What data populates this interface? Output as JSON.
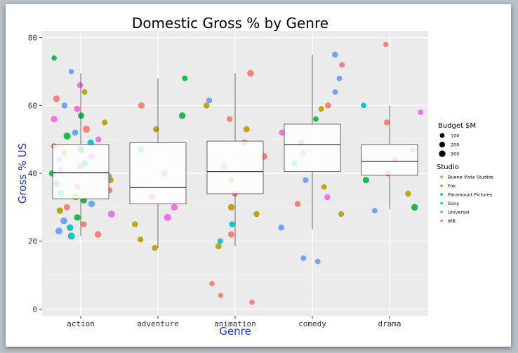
{
  "chart_data": {
    "type": "box+scatter",
    "title": "Domestic Gross % by Genre",
    "xlabel": "Genre",
    "ylabel": "Gross % US",
    "categories": [
      "action",
      "adventure",
      "animation",
      "comedy",
      "drama"
    ],
    "ylim": [
      -2,
      82
    ],
    "yticks": [
      0,
      20,
      40,
      60,
      80
    ],
    "grid": true,
    "boxes": [
      {
        "category": "action",
        "whisker_low": 21.5,
        "q1": 32.5,
        "median": 40.2,
        "q3": 48.5,
        "whisker_high": 69.5
      },
      {
        "category": "adventure",
        "whisker_low": 18.0,
        "q1": 31.0,
        "median": 35.8,
        "q3": 49.0,
        "whisker_high": 68.0
      },
      {
        "category": "animation",
        "whisker_low": 18.5,
        "q1": 34.0,
        "median": 40.5,
        "q3": 49.5,
        "whisker_high": 69.5
      },
      {
        "category": "comedy",
        "whisker_low": 23.5,
        "q1": 40.5,
        "median": 48.5,
        "q3": 54.5,
        "whisker_high": 75.0
      },
      {
        "category": "drama",
        "whisker_low": 29.5,
        "q1": 39.5,
        "median": 43.5,
        "q3": 48.5,
        "whisker_high": 60.0
      }
    ],
    "legend": {
      "placement": "right",
      "size_title": "Budget $M",
      "size_levels": [
        {
          "label": "100",
          "value": 100
        },
        {
          "label": "200",
          "value": 200
        },
        {
          "label": "300",
          "value": 300
        }
      ],
      "color_title": "Studio",
      "studios": [
        {
          "name": "Buena Vista Studios",
          "color": "#f8766d"
        },
        {
          "name": "Fox",
          "color": "#b79f00"
        },
        {
          "name": "Paramount Pictures",
          "color": "#00ba38"
        },
        {
          "name": "Sony",
          "color": "#00bfc4"
        },
        {
          "name": "Universal",
          "color": "#619cff"
        },
        {
          "name": "WB",
          "color": "#f564e3"
        }
      ]
    },
    "points": [
      {
        "genre": "action",
        "y": 66,
        "studio": "WB",
        "budget": 150
      },
      {
        "genre": "action",
        "y": 64,
        "studio": "Fox",
        "budget": 120
      },
      {
        "genre": "action",
        "y": 62,
        "studio": "Buena Vista Studios",
        "budget": 200
      },
      {
        "genre": "action",
        "y": 60,
        "studio": "Universal",
        "budget": 150
      },
      {
        "genre": "action",
        "y": 59,
        "studio": "WB",
        "budget": 170
      },
      {
        "genre": "action",
        "y": 57,
        "studio": "Paramount Pictures",
        "budget": 180
      },
      {
        "genre": "action",
        "y": 56,
        "studio": "WB",
        "budget": 200
      },
      {
        "genre": "action",
        "y": 55,
        "studio": "Fox",
        "budget": 130
      },
      {
        "genre": "action",
        "y": 53,
        "studio": "Buena Vista Studios",
        "budget": 230
      },
      {
        "genre": "action",
        "y": 52,
        "studio": "Universal",
        "budget": 160
      },
      {
        "genre": "action",
        "y": 51,
        "studio": "Paramount Pictures",
        "budget": 250
      },
      {
        "genre": "action",
        "y": 50,
        "studio": "WB",
        "budget": 140
      },
      {
        "genre": "action",
        "y": 49,
        "studio": "Sony",
        "budget": 200
      },
      {
        "genre": "action",
        "y": 48,
        "studio": "Buena Vista Studios",
        "budget": 150
      },
      {
        "genre": "action",
        "y": 47,
        "studio": "Paramount Pictures",
        "budget": 220
      },
      {
        "genre": "action",
        "y": 46,
        "studio": "Fox",
        "budget": 160
      },
      {
        "genre": "action",
        "y": 45,
        "studio": "WB",
        "budget": 180
      },
      {
        "genre": "action",
        "y": 44,
        "studio": "Universal",
        "budget": 130
      },
      {
        "genre": "action",
        "y": 43,
        "studio": "Sony",
        "budget": 210
      },
      {
        "genre": "action",
        "y": 42,
        "studio": "Buena Vista Studios",
        "budget": 170
      },
      {
        "genre": "action",
        "y": 41,
        "studio": "WB",
        "budget": 150
      },
      {
        "genre": "action",
        "y": 40,
        "studio": "Paramount Pictures",
        "budget": 190
      },
      {
        "genre": "action",
        "y": 39,
        "studio": "Universal",
        "budget": 240
      },
      {
        "genre": "action",
        "y": 38,
        "studio": "Fox",
        "budget": 170
      },
      {
        "genre": "action",
        "y": 37,
        "studio": "Sony",
        "budget": 160
      },
      {
        "genre": "action",
        "y": 36,
        "studio": "WB",
        "budget": 200
      },
      {
        "genre": "action",
        "y": 35,
        "studio": "Buena Vista Studios",
        "budget": 140
      },
      {
        "genre": "action",
        "y": 34,
        "studio": "Sony",
        "budget": 250
      },
      {
        "genre": "action",
        "y": 33,
        "studio": "Fox",
        "budget": 180
      },
      {
        "genre": "action",
        "y": 32,
        "studio": "Paramount Pictures",
        "budget": 150
      },
      {
        "genre": "action",
        "y": 31,
        "studio": "Universal",
        "budget": 200
      },
      {
        "genre": "action",
        "y": 30,
        "studio": "Buena Vista Studios",
        "budget": 170
      },
      {
        "genre": "action",
        "y": 29,
        "studio": "Fox",
        "budget": 200
      },
      {
        "genre": "action",
        "y": 28,
        "studio": "WB",
        "budget": 230
      },
      {
        "genre": "action",
        "y": 27,
        "studio": "Paramount Pictures",
        "budget": 190
      },
      {
        "genre": "action",
        "y": 26,
        "studio": "Universal",
        "budget": 220
      },
      {
        "genre": "action",
        "y": 25,
        "studio": "Buena Vista Studios",
        "budget": 150
      },
      {
        "genre": "action",
        "y": 24,
        "studio": "Sony",
        "budget": 200
      },
      {
        "genre": "action",
        "y": 23,
        "studio": "Universal",
        "budget": 230
      },
      {
        "genre": "action",
        "y": 22,
        "studio": "Buena Vista Studios",
        "budget": 200
      },
      {
        "genre": "action",
        "y": 21.5,
        "studio": "Sony",
        "budget": 240
      },
      {
        "genre": "action",
        "y": 70,
        "studio": "Universal",
        "budget": 100
      },
      {
        "genre": "action",
        "y": 74,
        "studio": "Paramount Pictures",
        "budget": 100
      },
      {
        "genre": "adventure",
        "y": 68,
        "studio": "Paramount Pictures",
        "budget": 120
      },
      {
        "genre": "adventure",
        "y": 60,
        "studio": "Buena Vista Studios",
        "budget": 180
      },
      {
        "genre": "adventure",
        "y": 57,
        "studio": "Paramount Pictures",
        "budget": 200
      },
      {
        "genre": "adventure",
        "y": 53,
        "studio": "Fox",
        "budget": 150
      },
      {
        "genre": "adventure",
        "y": 47,
        "studio": "Sony",
        "budget": 150
      },
      {
        "genre": "adventure",
        "y": 40,
        "studio": "Universal",
        "budget": 230
      },
      {
        "genre": "adventure",
        "y": 33,
        "studio": "Buena Vista Studios",
        "budget": 200
      },
      {
        "genre": "adventure",
        "y": 30,
        "studio": "WB",
        "budget": 200
      },
      {
        "genre": "adventure",
        "y": 27,
        "studio": "WB",
        "budget": 250
      },
      {
        "genre": "adventure",
        "y": 25,
        "studio": "Fox",
        "budget": 150
      },
      {
        "genre": "adventure",
        "y": 20.5,
        "studio": "Fox",
        "budget": 140
      },
      {
        "genre": "adventure",
        "y": 18,
        "studio": "Fox",
        "budget": 150
      },
      {
        "genre": "animation",
        "y": 61.5,
        "studio": "Universal",
        "budget": 130
      },
      {
        "genre": "animation",
        "y": 60,
        "studio": "Fox",
        "budget": 150
      },
      {
        "genre": "animation",
        "y": 56,
        "studio": "Buena Vista Studios",
        "budget": 140
      },
      {
        "genre": "animation",
        "y": 53,
        "studio": "Fox",
        "budget": 170
      },
      {
        "genre": "animation",
        "y": 49,
        "studio": "Buena Vista Studios",
        "budget": 200
      },
      {
        "genre": "animation",
        "y": 45,
        "studio": "Buena Vista Studios",
        "budget": 220
      },
      {
        "genre": "animation",
        "y": 42,
        "studio": "Buena Vista Studios",
        "budget": 180
      },
      {
        "genre": "animation",
        "y": 38,
        "studio": "Fox",
        "budget": 150
      },
      {
        "genre": "animation",
        "y": 34,
        "studio": "Buena Vista Studios",
        "budget": 160
      },
      {
        "genre": "animation",
        "y": 30,
        "studio": "Fox",
        "budget": 200
      },
      {
        "genre": "animation",
        "y": 28,
        "studio": "Fox",
        "budget": 150
      },
      {
        "genre": "animation",
        "y": 25,
        "studio": "Sony",
        "budget": 140
      },
      {
        "genre": "animation",
        "y": 22,
        "studio": "Buena Vista Studios",
        "budget": 180
      },
      {
        "genre": "animation",
        "y": 20,
        "studio": "Sony",
        "budget": 120
      },
      {
        "genre": "animation",
        "y": 18.5,
        "studio": "Fox",
        "budget": 150
      },
      {
        "genre": "animation",
        "y": 69.5,
        "studio": "Buena Vista Studios",
        "budget": 200
      },
      {
        "genre": "animation",
        "y": 7.5,
        "studio": "Buena Vista Studios",
        "budget": 90
      },
      {
        "genre": "animation",
        "y": 4,
        "studio": "Buena Vista Studios",
        "budget": 90
      },
      {
        "genre": "animation",
        "y": 2,
        "studio": "Buena Vista Studios",
        "budget": 90
      },
      {
        "genre": "comedy",
        "y": 75,
        "studio": "Universal",
        "budget": 150
      },
      {
        "genre": "comedy",
        "y": 72,
        "studio": "Buena Vista Studios",
        "budget": 110
      },
      {
        "genre": "comedy",
        "y": 68,
        "studio": "Universal",
        "budget": 110
      },
      {
        "genre": "comedy",
        "y": 64,
        "studio": "Universal",
        "budget": 110
      },
      {
        "genre": "comedy",
        "y": 60,
        "studio": "Buena Vista Studios",
        "budget": 150
      },
      {
        "genre": "comedy",
        "y": 59,
        "studio": "Fox",
        "budget": 120
      },
      {
        "genre": "comedy",
        "y": 56,
        "studio": "Paramount Pictures",
        "budget": 110
      },
      {
        "genre": "comedy",
        "y": 52,
        "studio": "WB",
        "budget": 170
      },
      {
        "genre": "comedy",
        "y": 49,
        "studio": "Universal",
        "budget": 140
      },
      {
        "genre": "comedy",
        "y": 46,
        "studio": "WB",
        "budget": 120
      },
      {
        "genre": "comedy",
        "y": 43,
        "studio": "Sony",
        "budget": 150
      },
      {
        "genre": "comedy",
        "y": 38,
        "studio": "Universal",
        "budget": 140
      },
      {
        "genre": "comedy",
        "y": 36,
        "studio": "Fox",
        "budget": 120
      },
      {
        "genre": "comedy",
        "y": 33,
        "studio": "WB",
        "budget": 150
      },
      {
        "genre": "comedy",
        "y": 31,
        "studio": "Buena Vista Studios",
        "budget": 150
      },
      {
        "genre": "comedy",
        "y": 28,
        "studio": "Fox",
        "budget": 120
      },
      {
        "genre": "comedy",
        "y": 24,
        "studio": "Universal",
        "budget": 150
      },
      {
        "genre": "comedy",
        "y": 15,
        "studio": "Universal",
        "budget": 110
      },
      {
        "genre": "comedy",
        "y": 14,
        "studio": "Universal",
        "budget": 110
      },
      {
        "genre": "drama",
        "y": 78,
        "studio": "Buena Vista Studios",
        "budget": 90
      },
      {
        "genre": "drama",
        "y": 60,
        "studio": "Sony",
        "budget": 110
      },
      {
        "genre": "drama",
        "y": 58,
        "studio": "WB",
        "budget": 110
      },
      {
        "genre": "drama",
        "y": 55,
        "studio": "Buena Vista Studios",
        "budget": 140
      },
      {
        "genre": "drama",
        "y": 47,
        "studio": "Universal",
        "budget": 140
      },
      {
        "genre": "drama",
        "y": 44,
        "studio": "WB",
        "budget": 130
      },
      {
        "genre": "drama",
        "y": 40,
        "studio": "Buena Vista Studios",
        "budget": 150
      },
      {
        "genre": "drama",
        "y": 38,
        "studio": "Paramount Pictures",
        "budget": 180
      },
      {
        "genre": "drama",
        "y": 34,
        "studio": "Fox",
        "budget": 140
      },
      {
        "genre": "drama",
        "y": 30,
        "studio": "Paramount Pictures",
        "budget": 210
      },
      {
        "genre": "drama",
        "y": 29,
        "studio": "Universal",
        "budget": 110
      }
    ]
  }
}
